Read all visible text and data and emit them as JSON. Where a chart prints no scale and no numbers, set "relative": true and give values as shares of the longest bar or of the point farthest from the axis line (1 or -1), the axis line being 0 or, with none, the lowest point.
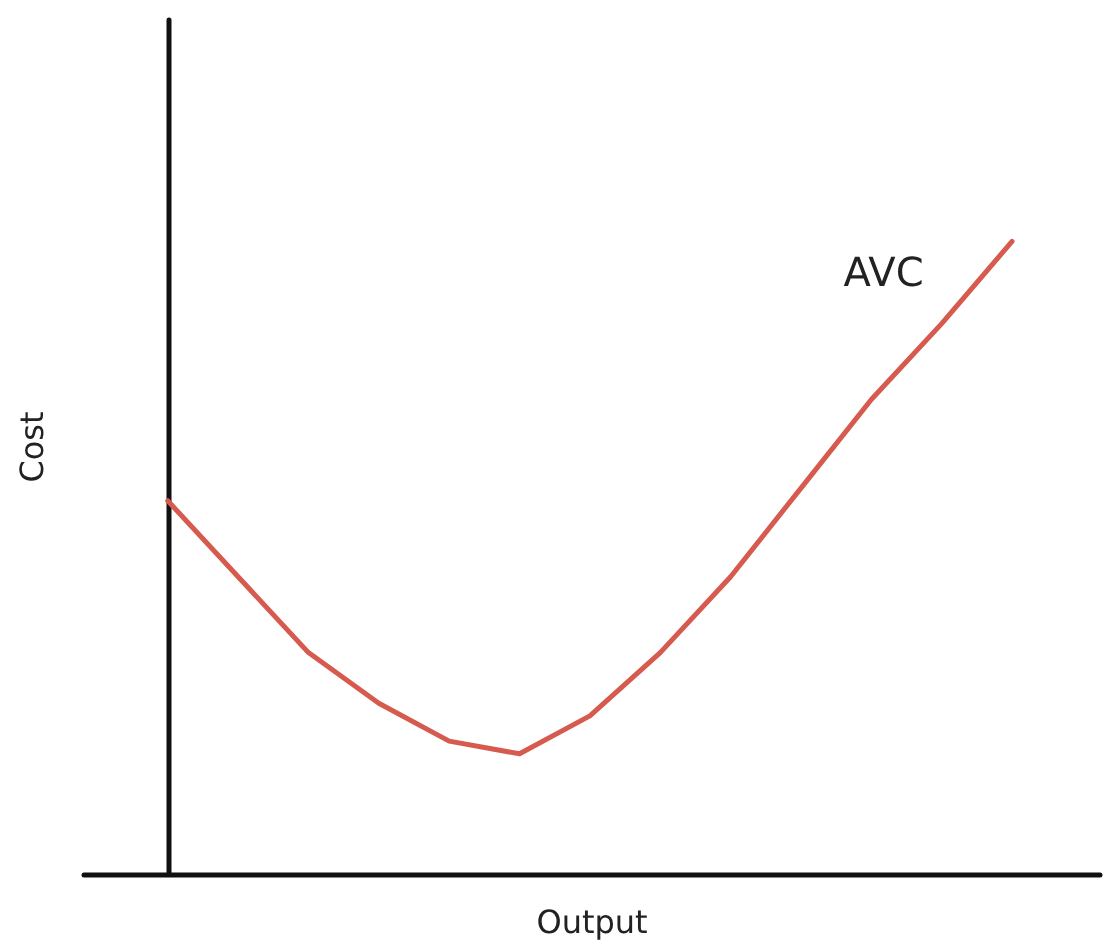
{
  "chart_data": {
    "type": "line",
    "xlabel": "Output",
    "ylabel": "Cost",
    "relative": true,
    "grid": false,
    "legend": false,
    "marker": "none",
    "categories": [
      null,
      null,
      null,
      null,
      null,
      null,
      null,
      null,
      null,
      null,
      null,
      null,
      null
    ],
    "series": [
      {
        "name": "AVC",
        "color": "#d65a4e",
        "values": [
          0.59,
          0.47,
          0.35,
          0.27,
          0.21,
          0.19,
          0.25,
          0.35,
          0.47,
          0.61,
          0.75,
          0.87,
          1
        ]
      }
    ]
  }
}
